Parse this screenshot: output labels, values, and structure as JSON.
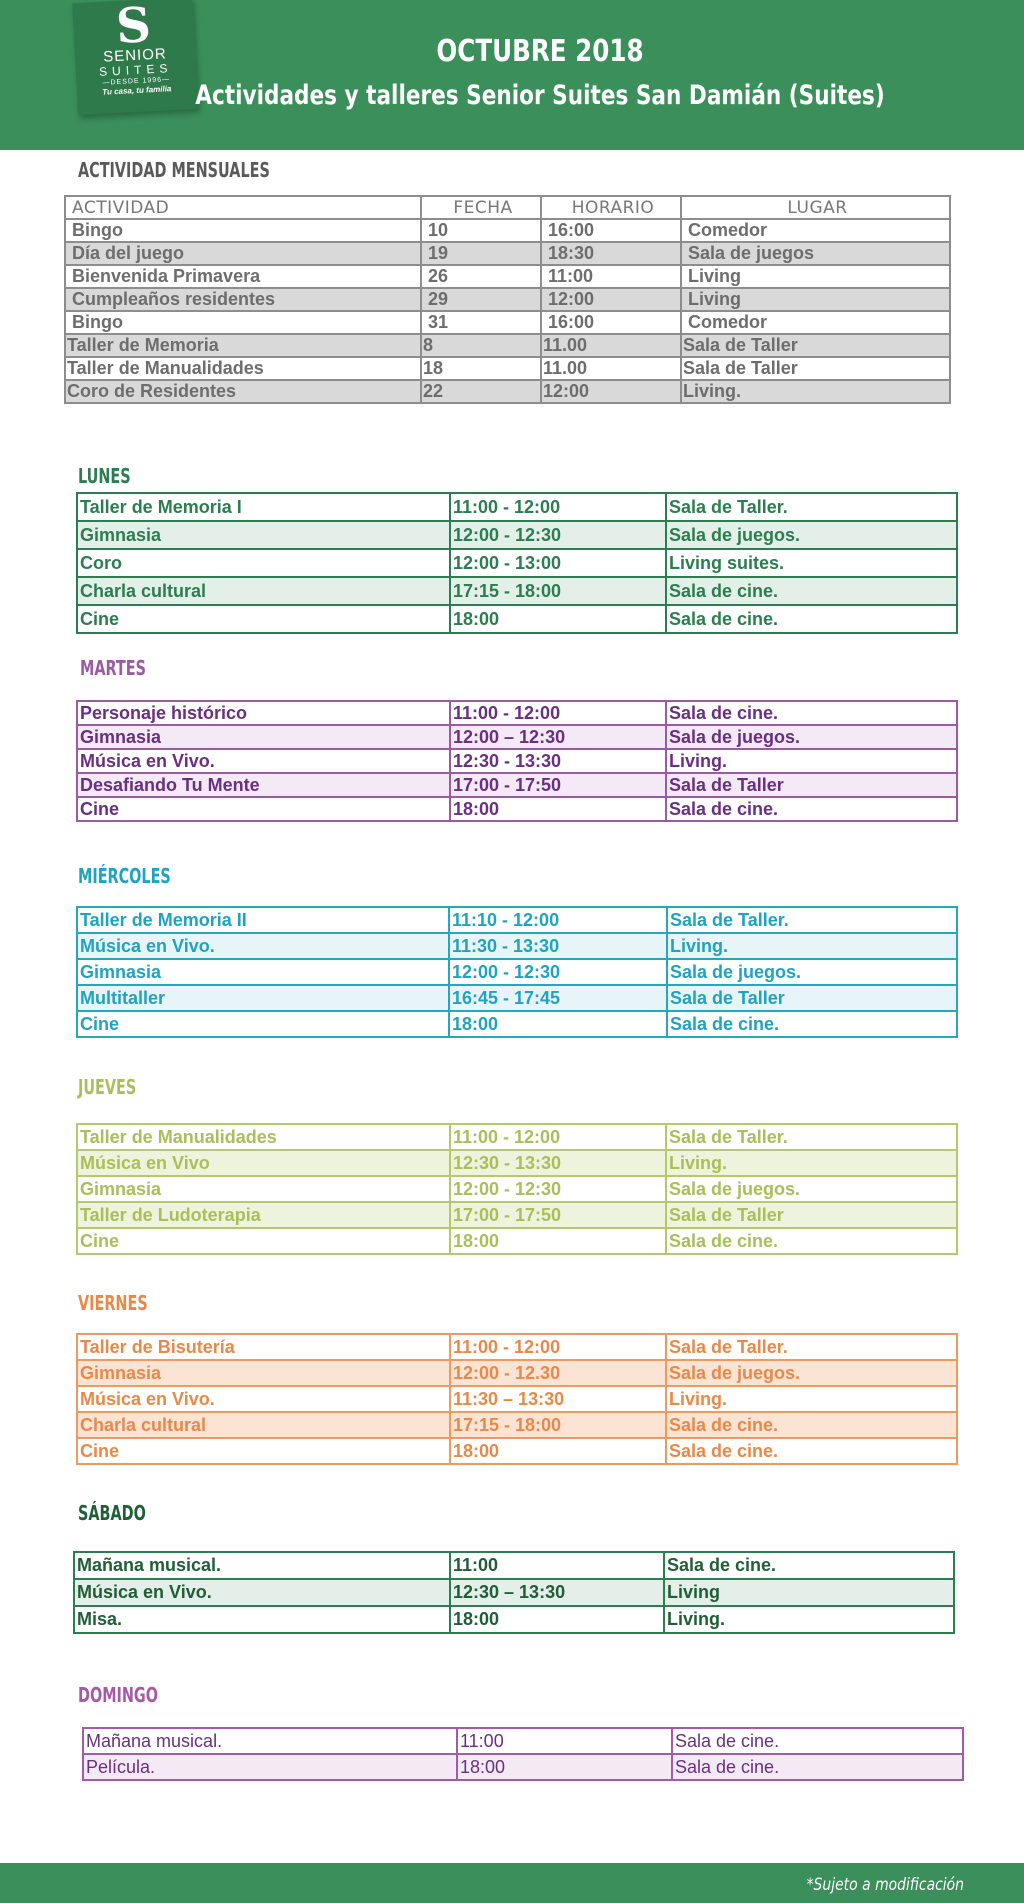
{
  "header": {
    "logo": {
      "letter": "S",
      "brand_line1": "SENIOR",
      "brand_line2": "SUITES",
      "since": "—DESDE 1996—",
      "tagline": "Tu casa, tu familia"
    },
    "title": "OCTUBRE 2018",
    "subtitle": "Actividades y talleres Senior Suites San Damián (Suites)"
  },
  "monthly": {
    "title": "ACTIVIDAD MENSUALES",
    "columns": [
      "ACTIVIDAD",
      "FECHA",
      "HORARIO",
      "LUGAR"
    ],
    "rows": [
      [
        "Bingo",
        "10",
        "16:00",
        "Comedor"
      ],
      [
        "Día del juego",
        "19",
        "18:30",
        "Sala de juegos"
      ],
      [
        "Bienvenida Primavera",
        "26",
        "11:00",
        "Living"
      ],
      [
        "Cumpleaños residentes",
        "29",
        "12:00",
        "Living"
      ],
      [
        "Bingo",
        "31",
        "16:00",
        "Comedor"
      ],
      [
        "Taller de Memoria",
        "8",
        "11.00",
        "Sala de Taller"
      ],
      [
        "Taller de Manualidades",
        "18",
        "11.00",
        "Sala de Taller"
      ],
      [
        "Coro de Residentes",
        "22",
        "12:00",
        "Living."
      ]
    ]
  },
  "days": {
    "lunes": {
      "title": "LUNES",
      "color": "#2c7d50",
      "rows": [
        [
          "Taller de Memoria I",
          "11:00 - 12:00",
          "Sala de Taller."
        ],
        [
          "Gimnasia",
          "12:00 - 12:30",
          "Sala de juegos."
        ],
        [
          "Coro",
          "12:00 - 13:00",
          "Living suites."
        ],
        [
          "Charla cultural",
          "17:15  - 18:00",
          "Sala de cine."
        ],
        [
          "Cine",
          "18:00",
          "Sala de cine."
        ]
      ]
    },
    "martes": {
      "title": "MARTES",
      "color": "#9b5aa6",
      "rows": [
        [
          "Personaje histórico",
          "11:00 - 12:00",
          "Sala de cine."
        ],
        [
          "Gimnasia",
          "12:00 – 12:30",
          "Sala de juegos."
        ],
        [
          "Música en Vivo.",
          "12:30 - 13:30",
          "Living."
        ],
        [
          "Desafiando Tu Mente",
          "17:00 - 17:50",
          "Sala de Taller"
        ],
        [
          "Cine",
          "18:00",
          "Sala de cine."
        ]
      ]
    },
    "miercoles": {
      "title": "MIÉRCOLES",
      "color": "#1fa3c0",
      "rows": [
        [
          "Taller de Memoria II",
          "11:10 - 12:00",
          "Sala de Taller."
        ],
        [
          "Música en Vivo.",
          "11:30 - 13:30",
          "Living."
        ],
        [
          "Gimnasia",
          "12:00 - 12:30",
          "Sala de juegos."
        ],
        [
          "Multitaller",
          "16:45 - 17:45",
          "Sala de Taller"
        ],
        [
          "Cine",
          "18:00",
          "Sala de cine."
        ]
      ]
    },
    "jueves": {
      "title": "JUEVES",
      "color": "#a8bf5a",
      "rows": [
        [
          "Taller de Manualidades",
          "11:00 - 12:00",
          "Sala de Taller."
        ],
        [
          "Música en Vivo",
          "12:30 - 13:30",
          "Living."
        ],
        [
          "Gimnasia",
          "12:00 - 12:30",
          "Sala de juegos."
        ],
        [
          "Taller de Ludoterapia",
          "17:00 - 17:50",
          "Sala de Taller"
        ],
        [
          "Cine",
          "18:00",
          "Sala de cine."
        ]
      ]
    },
    "viernes": {
      "title": "VIERNES",
      "color": "#e8894a",
      "rows": [
        [
          "Taller de Bisutería",
          "11:00 - 12:00",
          "Sala de Taller."
        ],
        [
          "Gimnasia",
          "12:00 - 12.30",
          "Sala de juegos."
        ],
        [
          "Música en Vivo.",
          "11:30 – 13:30",
          "Living."
        ],
        [
          "Charla cultural",
          "17:15  - 18:00",
          "Sala de cine."
        ],
        [
          "Cine",
          "18:00",
          "Sala de cine."
        ]
      ]
    },
    "sabado": {
      "title": "SÁBADO",
      "color": "#1f5e37",
      "rows": [
        [
          "Mañana musical.",
          "11:00",
          "Sala de cine."
        ],
        [
          "Música en Vivo.",
          "12:30 – 13:30",
          "Living"
        ],
        [
          "Misa.",
          "18:00",
          "Living."
        ]
      ]
    },
    "domingo": {
      "title": "DOMINGO",
      "color": "#a45aa8",
      "rows": [
        [
          "Mañana musical.",
          "11:00",
          "Sala de cine."
        ],
        [
          "Película.",
          "18:00",
          "Sala de cine."
        ]
      ]
    }
  },
  "footer": {
    "note": "*Sujeto a modificación"
  }
}
